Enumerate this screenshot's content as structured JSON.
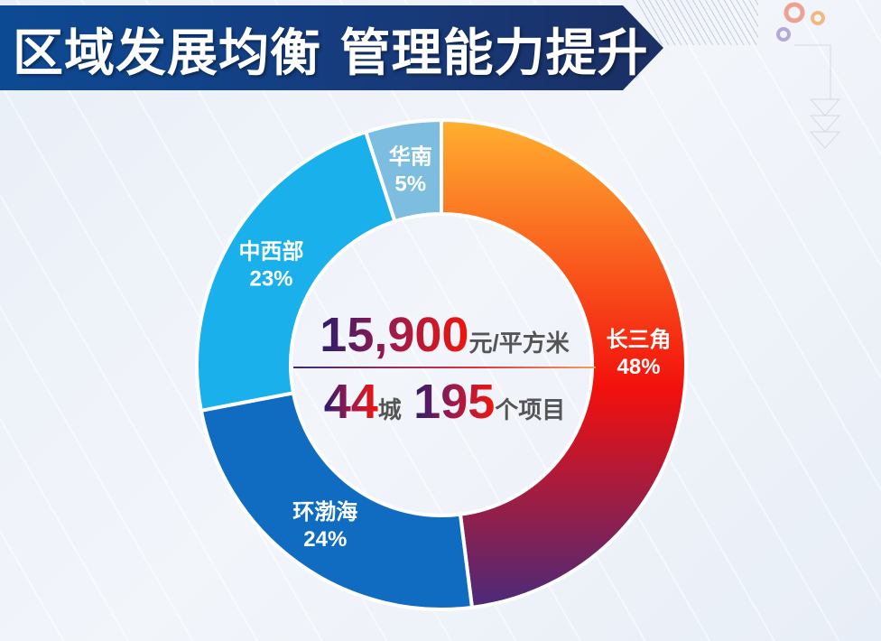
{
  "header": {
    "title": "区域发展均衡 管理能力提升"
  },
  "chart_data": {
    "type": "pie",
    "donut": true,
    "categories": [
      "长三角",
      "环渤海",
      "中西部",
      "华南"
    ],
    "values": [
      48,
      24,
      23,
      5
    ],
    "labels": [
      "48%",
      "24%",
      "23%",
      "5%"
    ],
    "colors": [
      "#f5501a",
      "#0f6cc0",
      "#1ab0ec",
      "#7dbde0"
    ]
  },
  "center": {
    "price": "15,900",
    "price_unit": "元/平方米",
    "cities": "44",
    "cities_unit": "城",
    "projects": "195",
    "projects_unit": "个项目"
  }
}
